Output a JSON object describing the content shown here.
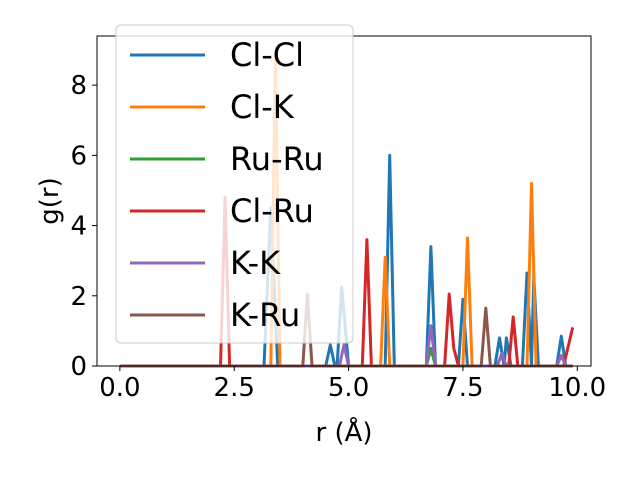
{
  "chart_data": {
    "type": "line",
    "xlabel": "r (Å)",
    "ylabel": "g(r)",
    "xlim": [
      -0.5,
      10.3
    ],
    "ylim": [
      0,
      9.4
    ],
    "xticks": [
      0.0,
      2.5,
      5.0,
      7.5,
      10.0
    ],
    "xtick_labels": [
      "0.0",
      "2.5",
      "5.0",
      "7.5",
      "10.0"
    ],
    "yticks": [
      0,
      2,
      4,
      6,
      8
    ],
    "ytick_labels": [
      "0",
      "2",
      "4",
      "6",
      "8"
    ],
    "legend_position": "upper-left",
    "series": [
      {
        "name": "Cl-Cl",
        "color": "#1f77b4",
        "points": [
          [
            0,
            0
          ],
          [
            3.15,
            0
          ],
          [
            3.3,
            4.5
          ],
          [
            3.45,
            0
          ],
          [
            4.5,
            0
          ],
          [
            4.6,
            0.6
          ],
          [
            4.7,
            0
          ],
          [
            4.75,
            0
          ],
          [
            4.85,
            2.25
          ],
          [
            5.0,
            0
          ],
          [
            5.8,
            0
          ],
          [
            5.9,
            6.0
          ],
          [
            6.0,
            0
          ],
          [
            6.7,
            0
          ],
          [
            6.8,
            3.4
          ],
          [
            6.9,
            0
          ],
          [
            7.4,
            0
          ],
          [
            7.5,
            1.9
          ],
          [
            7.6,
            0
          ],
          [
            8.2,
            0
          ],
          [
            8.3,
            0.8
          ],
          [
            8.4,
            0
          ],
          [
            8.45,
            0.8
          ],
          [
            8.55,
            0
          ],
          [
            8.8,
            0
          ],
          [
            8.9,
            2.65
          ],
          [
            9.0,
            0
          ],
          [
            9.05,
            2.55
          ],
          [
            9.15,
            0
          ],
          [
            9.55,
            0
          ],
          [
            9.65,
            0.85
          ],
          [
            9.75,
            0
          ],
          [
            9.9,
            0
          ]
        ]
      },
      {
        "name": "Cl-K",
        "color": "#ff7f0e",
        "points": [
          [
            0,
            0
          ],
          [
            3.3,
            0
          ],
          [
            3.4,
            8.8
          ],
          [
            3.5,
            0
          ],
          [
            5.7,
            0
          ],
          [
            5.8,
            3.1
          ],
          [
            5.9,
            0
          ],
          [
            7.5,
            0
          ],
          [
            7.6,
            3.65
          ],
          [
            7.7,
            0
          ],
          [
            8.9,
            0
          ],
          [
            9.0,
            5.2
          ],
          [
            9.1,
            0
          ],
          [
            9.9,
            0
          ]
        ]
      },
      {
        "name": "Ru-Ru",
        "color": "#2ca02c",
        "points": [
          [
            0,
            0
          ],
          [
            6.7,
            0
          ],
          [
            6.8,
            0.5
          ],
          [
            6.9,
            0
          ],
          [
            9.9,
            0
          ]
        ]
      },
      {
        "name": "Cl-Ru",
        "color": "#d62728",
        "points": [
          [
            0,
            0
          ],
          [
            2.2,
            0
          ],
          [
            2.3,
            4.8
          ],
          [
            2.4,
            0
          ],
          [
            5.3,
            0
          ],
          [
            5.4,
            3.6
          ],
          [
            5.5,
            0
          ],
          [
            7.1,
            0
          ],
          [
            7.2,
            2.05
          ],
          [
            7.3,
            0.5
          ],
          [
            7.4,
            0
          ],
          [
            8.5,
            0
          ],
          [
            8.6,
            1.4
          ],
          [
            8.7,
            0
          ],
          [
            9.7,
            0
          ],
          [
            9.9,
            1.1
          ]
        ]
      },
      {
        "name": "K-K",
        "color": "#9467bd",
        "points": [
          [
            0,
            0
          ],
          [
            4.8,
            0
          ],
          [
            4.9,
            0.6
          ],
          [
            5.0,
            0
          ],
          [
            6.7,
            0
          ],
          [
            6.8,
            1.15
          ],
          [
            6.9,
            0
          ],
          [
            8.25,
            0
          ],
          [
            8.35,
            0.35
          ],
          [
            8.45,
            0
          ],
          [
            9.55,
            0
          ],
          [
            9.65,
            0.3
          ],
          [
            9.75,
            0
          ],
          [
            9.9,
            0
          ]
        ]
      },
      {
        "name": "K-Ru",
        "color": "#8c564b",
        "points": [
          [
            0,
            0
          ],
          [
            4.0,
            0
          ],
          [
            4.1,
            2.05
          ],
          [
            4.2,
            0
          ],
          [
            7.9,
            0
          ],
          [
            8.0,
            1.65
          ],
          [
            8.1,
            0
          ],
          [
            9.9,
            0
          ]
        ]
      }
    ]
  }
}
